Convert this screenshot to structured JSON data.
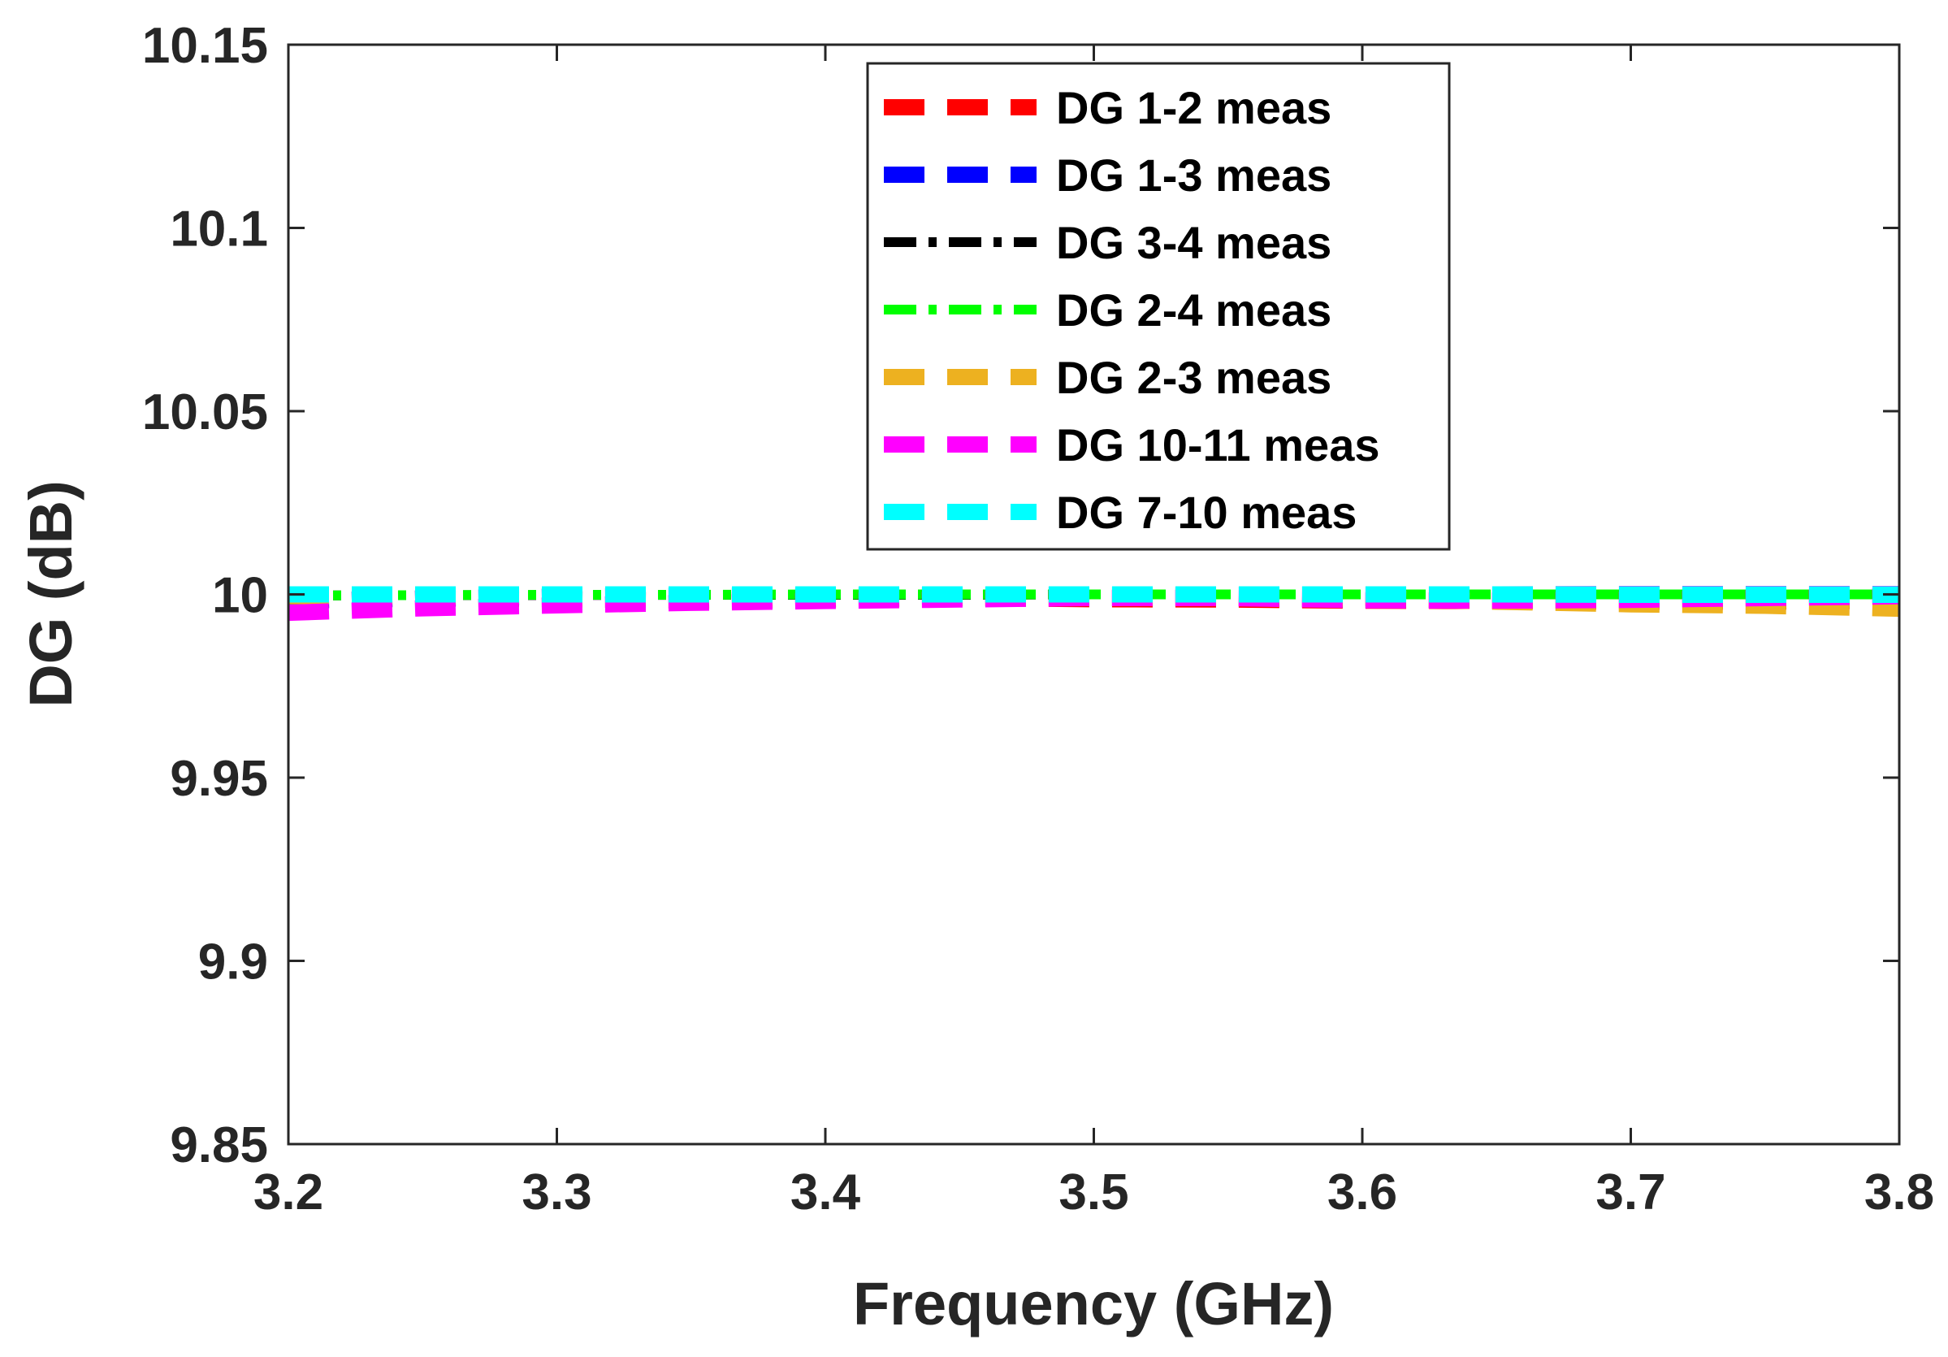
{
  "chart_data": {
    "type": "line",
    "title": "",
    "xlabel": "Frequency (GHz)",
    "ylabel": "DG (dB)",
    "xlim": [
      3.2,
      3.8
    ],
    "ylim": [
      9.85,
      10.15
    ],
    "xticks": [
      "3.2",
      "3.3",
      "3.4",
      "3.5",
      "3.6",
      "3.7",
      "3.8"
    ],
    "yticks": [
      "9.85",
      "9.9",
      "9.95",
      "10",
      "10.05",
      "10.1",
      "10.15"
    ],
    "xtick_values": [
      3.2,
      3.3,
      3.4,
      3.5,
      3.6,
      3.7,
      3.8
    ],
    "ytick_values": [
      9.85,
      9.9,
      9.95,
      10.0,
      10.05,
      10.1,
      10.15
    ],
    "grid": false,
    "legend_position": "top-center",
    "x": [
      3.2,
      3.25,
      3.3,
      3.35,
      3.4,
      3.45,
      3.5,
      3.55,
      3.6,
      3.65,
      3.7,
      3.75,
      3.8
    ],
    "series": [
      {
        "name": "DG 1-2 meas",
        "color": "#ff0000",
        "style": "dashed",
        "values": [
          9.9985,
          9.9988,
          9.9987,
          9.9983,
          9.9986,
          9.999,
          9.9987,
          9.9986,
          9.9983,
          9.9982,
          9.998,
          9.998,
          9.9983
        ]
      },
      {
        "name": "DG 1-3 meas",
        "color": "#0000ff",
        "style": "dashed",
        "values": [
          9.9982,
          9.9989,
          9.9994,
          9.9996,
          9.9997,
          9.9998,
          9.9999,
          9.9999,
          10.0,
          10.0,
          10.0,
          10.0,
          10.0
        ]
      },
      {
        "name": "DG 3-4 meas",
        "color": "#000000",
        "style": "dashdot",
        "values": [
          9.9997,
          9.9998,
          9.9998,
          9.9999,
          9.9999,
          9.9999,
          10.0,
          10.0,
          10.0,
          10.0,
          10.0,
          10.0,
          10.0
        ]
      },
      {
        "name": "DG 2-4 meas",
        "color": "#00ff00",
        "style": "dashdot",
        "values": [
          9.9997,
          9.9998,
          9.9999,
          9.9999,
          10.0,
          10.0,
          10.0,
          10.0,
          10.0,
          10.0,
          10.0,
          10.0,
          10.0
        ]
      },
      {
        "name": "DG 2-3 meas",
        "color": "#edb120",
        "style": "dashed",
        "values": [
          9.9995,
          9.9995,
          9.9994,
          9.9994,
          9.9994,
          9.9993,
          9.9992,
          9.9995,
          9.9991,
          9.998,
          9.9973,
          9.9969,
          9.9961
        ]
      },
      {
        "name": "DG 10-11 meas",
        "color": "#ff00ff",
        "style": "dashed",
        "values": [
          9.995,
          9.9962,
          9.997,
          9.9977,
          9.9982,
          9.9986,
          9.999,
          9.999,
          9.9984,
          9.9983,
          9.9985,
          9.999,
          9.9995
        ]
      },
      {
        "name": "DG 7-10 meas",
        "color": "#00ffff",
        "style": "dashed",
        "values": [
          10.0,
          10.0,
          10.0,
          10.0,
          10.0,
          10.0,
          10.0,
          10.0,
          10.0,
          10.0,
          9.9999,
          9.9999,
          9.9999
        ]
      }
    ]
  }
}
